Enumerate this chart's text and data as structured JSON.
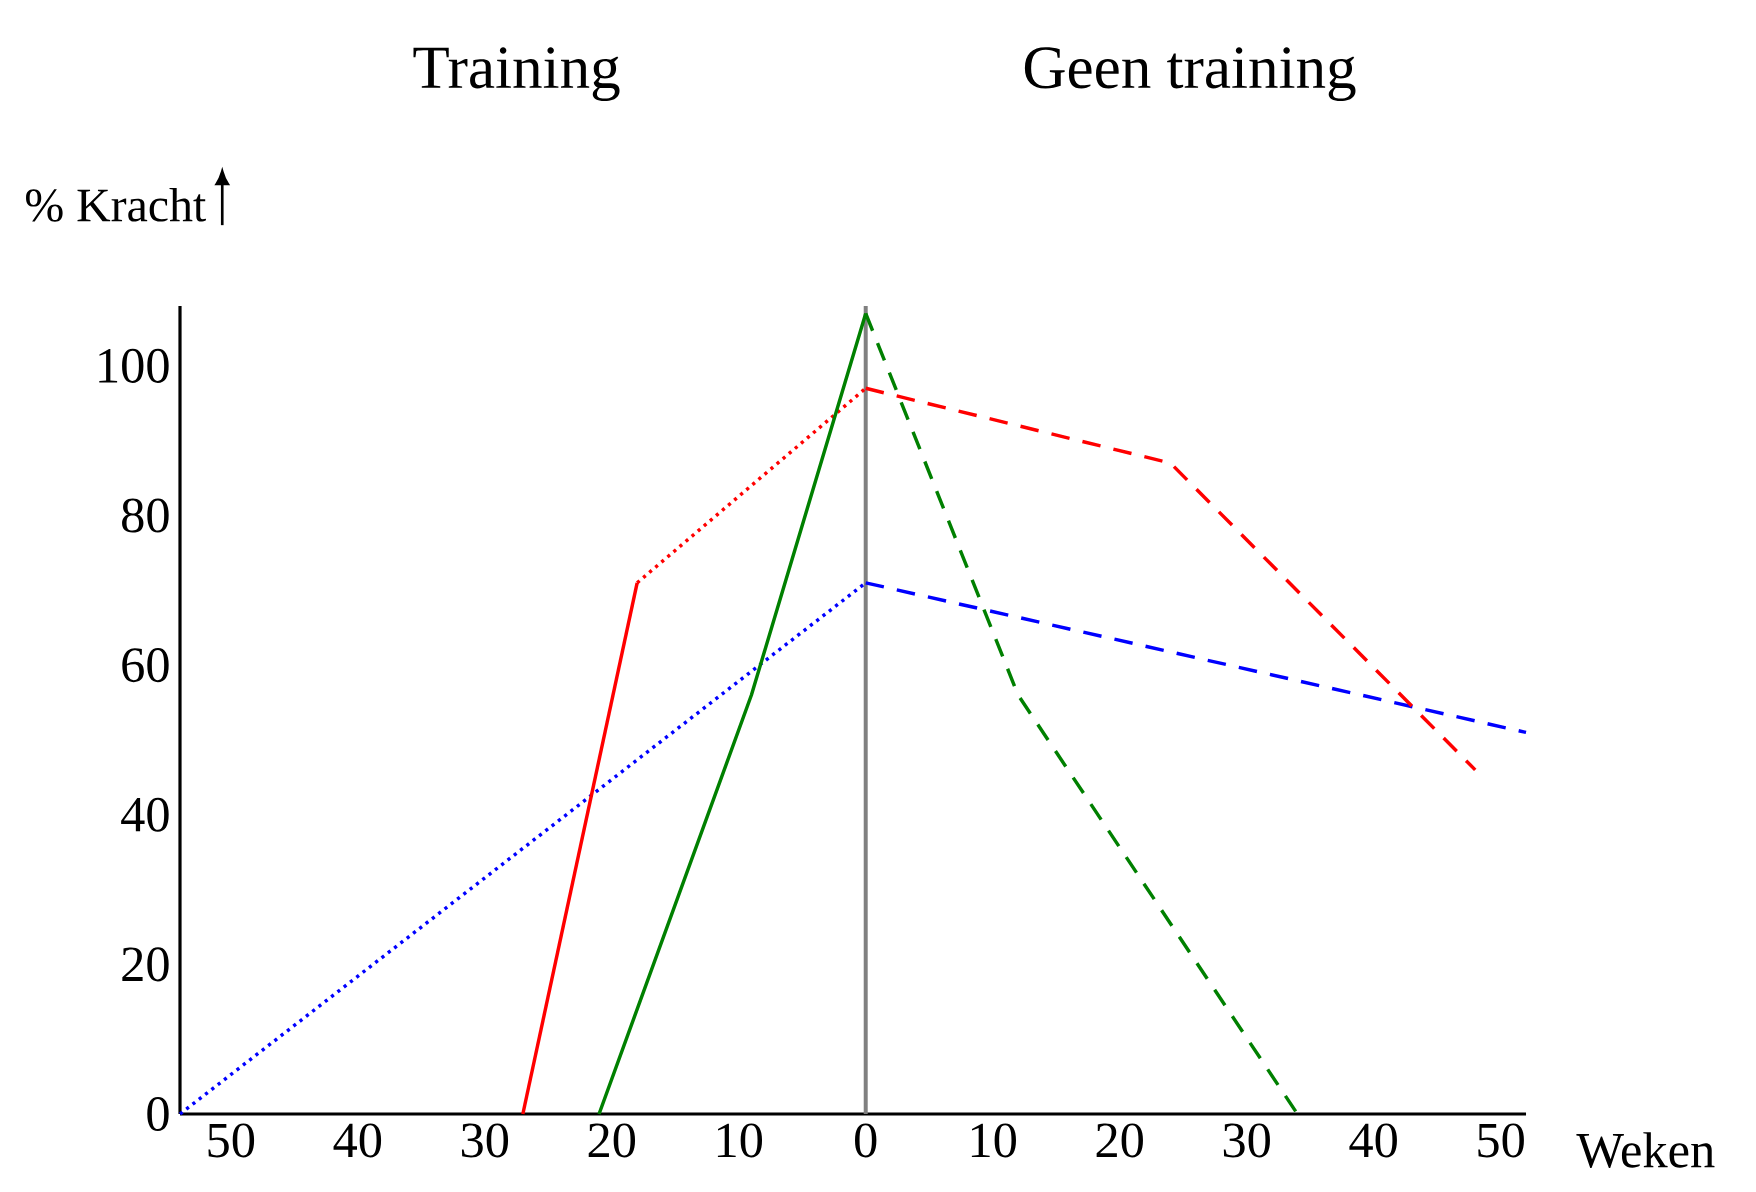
{
  "chart_data": {
    "type": "line",
    "xlabel": "Weken",
    "ylabel": "% Kracht",
    "annotations": [
      "Training",
      "Geen training"
    ],
    "xlim": [
      -54,
      52
    ],
    "ylim": [
      0,
      108
    ],
    "xticks": [
      {
        "value": -50,
        "label": "50"
      },
      {
        "value": -40,
        "label": "40"
      },
      {
        "value": -30,
        "label": "30"
      },
      {
        "value": -20,
        "label": "20"
      },
      {
        "value": -10,
        "label": "10"
      },
      0,
      10,
      20,
      30,
      40,
      50
    ],
    "yticks": [
      0,
      20,
      40,
      60,
      80,
      100
    ],
    "marker": "none",
    "ref_lines": [
      {
        "axis": "x",
        "value": 0,
        "color": "#808080"
      }
    ],
    "series": [
      {
        "color": "#0000ff",
        "line_style": "dotted",
        "x": [
          -54,
          0
        ],
        "values": [
          0,
          71
        ]
      },
      {
        "color": "#0000ff",
        "line_style": "dashed",
        "x": [
          0,
          52
        ],
        "values": [
          71,
          51
        ]
      },
      {
        "color": "#ff0000",
        "line_style": "solid",
        "x": [
          -27,
          -18
        ],
        "values": [
          0,
          71
        ]
      },
      {
        "color": "#ff0000",
        "line_style": "dotted",
        "x": [
          -18,
          0
        ],
        "values": [
          71,
          97
        ]
      },
      {
        "color": "#ff0000",
        "line_style": "dashed",
        "x": [
          0,
          24,
          48
        ],
        "values": [
          97,
          87,
          46
        ]
      },
      {
        "color": "#008000",
        "line_style": "solid",
        "x": [
          -21,
          -9,
          0
        ],
        "values": [
          0,
          56,
          107
        ]
      },
      {
        "color": "#008000",
        "line_style": "dashed",
        "x": [
          0,
          12,
          34
        ],
        "values": [
          107,
          56,
          0
        ]
      }
    ]
  }
}
